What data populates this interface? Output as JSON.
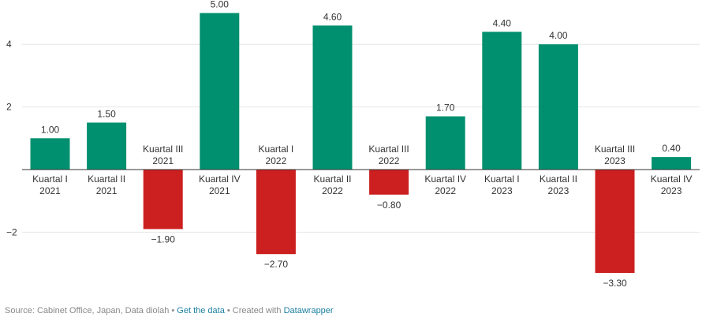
{
  "chart_data": {
    "type": "bar",
    "categories": [
      [
        "Kuartal I",
        "2021"
      ],
      [
        "Kuartal II",
        "2021"
      ],
      [
        "Kuartal III",
        "2021"
      ],
      [
        "Kuartal IV",
        "2021"
      ],
      [
        "Kuartal I",
        "2022"
      ],
      [
        "Kuartal II",
        "2022"
      ],
      [
        "Kuartal III",
        "2022"
      ],
      [
        "Kuartal IV",
        "2022"
      ],
      [
        "Kuartal I",
        "2023"
      ],
      [
        "Kuartal II",
        "2023"
      ],
      [
        "Kuartal III",
        "2023"
      ],
      [
        "Kuartal IV",
        "2023"
      ]
    ],
    "values": [
      1.0,
      1.5,
      -1.9,
      5.0,
      -2.7,
      4.6,
      -0.8,
      1.7,
      4.4,
      4.0,
      -3.3,
      0.4
    ],
    "value_labels": [
      "1.00",
      "1.50",
      "−1.90",
      "5.00",
      "−2.70",
      "4.60",
      "−0.80",
      "1.70",
      "4.40",
      "4.00",
      "−3.30",
      "0.40"
    ],
    "yticks": [
      4,
      2,
      -2
    ],
    "ytick_labels": [
      "4",
      "2",
      "−2"
    ],
    "ylim": [
      -3.8,
      5.3
    ],
    "grid": true,
    "colors": {
      "positive": "#00906f",
      "negative": "#cc1f1f"
    },
    "title": "",
    "xlabel": "",
    "ylabel": ""
  },
  "footer": {
    "source": "Source: Cabinet Office, Japan, Data diolah",
    "sep1": " • ",
    "get_data": "Get the data",
    "sep2": " • Created with ",
    "created_with": "Datawrapper"
  }
}
